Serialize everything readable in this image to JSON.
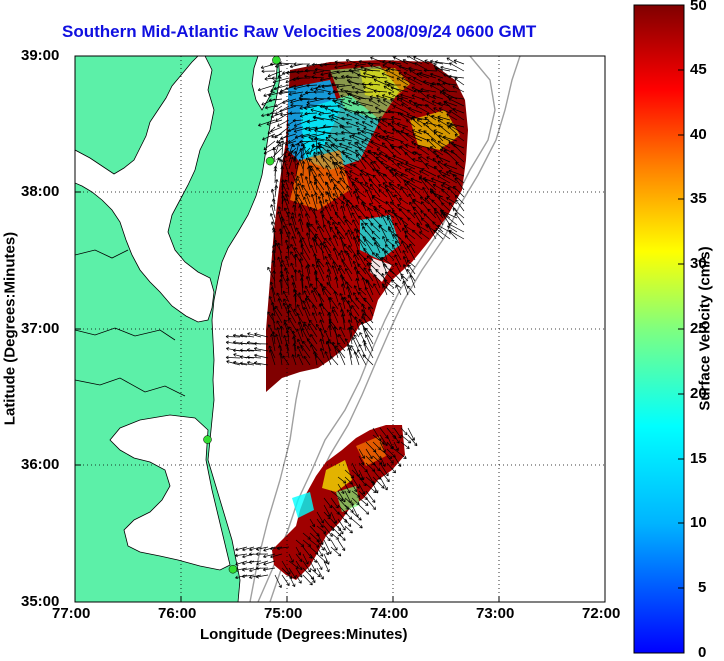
{
  "title": "Southern Mid-Atlantic Raw Velocities 2008/09/24 0600 GMT",
  "axes": {
    "x_label": "Longitude (Degrees:Minutes)",
    "y_label": "Latitude (Degrees:Minutes)",
    "x_ticks": [
      "77:00",
      "76:00",
      "75:00",
      "74:00",
      "73:00",
      "72:00"
    ],
    "y_ticks": [
      "39:00",
      "38:00",
      "37:00",
      "36:00",
      "35:00"
    ],
    "x_range": [
      -77,
      -72
    ],
    "y_range": [
      35,
      39
    ]
  },
  "colorbar": {
    "label": "Surface Velocity (cm/s)",
    "ticks": [
      "50",
      "45",
      "40",
      "35",
      "30",
      "25",
      "20",
      "15",
      "10",
      "5",
      "0"
    ],
    "range": [
      0,
      50
    ],
    "colormap": "jet"
  },
  "colors": {
    "land": "#5cf0a8",
    "water": "#ffffff",
    "title": "#1010e0",
    "bathymetry": "#a0a0a0",
    "station": "#33dd33"
  },
  "chart_data": {
    "type": "map",
    "grid": "dotted",
    "stations": [
      {
        "lon": -75.1,
        "lat": 38.97
      },
      {
        "lon": -75.16,
        "lat": 38.23
      },
      {
        "lon": -75.75,
        "lat": 36.19
      },
      {
        "lon": -75.51,
        "lat": 35.24
      }
    ]
  }
}
